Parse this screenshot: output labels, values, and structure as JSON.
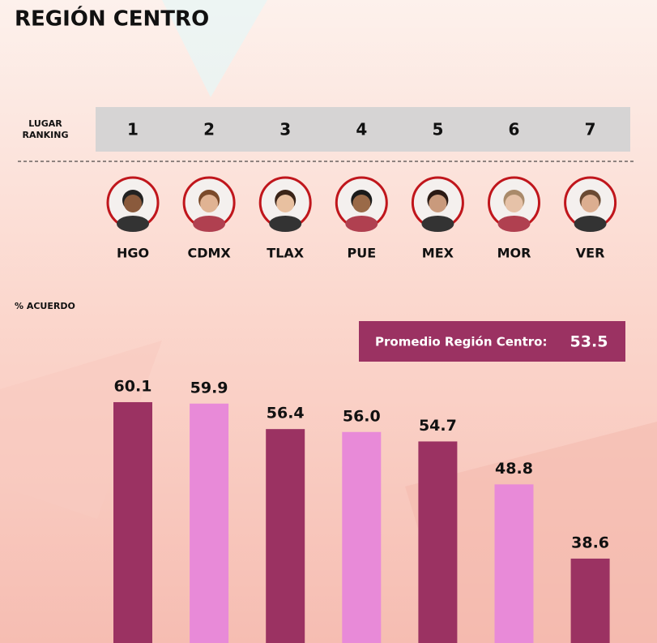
{
  "chart_data": {
    "type": "bar",
    "title": "REGIÓN CENTRO",
    "ranking_label": "LUGAR\nRANKING",
    "ranks": [
      1,
      2,
      3,
      4,
      5,
      6,
      7
    ],
    "categories": [
      "HGO",
      "CDMX",
      "TLAX",
      "PUE",
      "MEX",
      "MOR",
      "VER"
    ],
    "y_label": "% ACUERDO",
    "average_label": "Promedio Región Centro:",
    "average": 53.5,
    "values": [
      60.1,
      59.9,
      56.4,
      56.0,
      54.7,
      48.8,
      38.6
    ],
    "value_labels": [
      "60.1",
      "59.9",
      "56.4",
      "56.0",
      "54.7",
      "48.8",
      "38.6"
    ],
    "colors": [
      "#9b3262",
      "#e88ad8",
      "#9b3262",
      "#e88ad8",
      "#9b3262",
      "#e88ad8",
      "#9b3262"
    ],
    "ylim": [
      27,
      65
    ]
  }
}
